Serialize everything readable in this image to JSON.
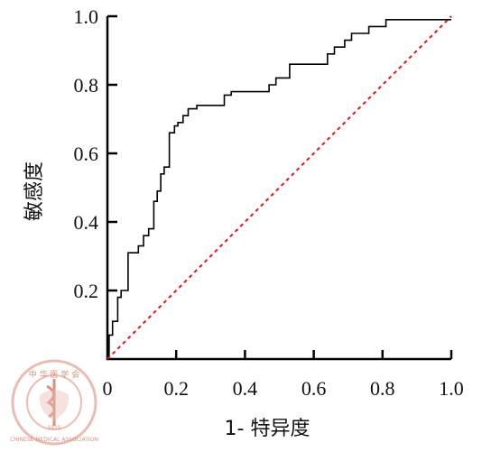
{
  "chart_data": {
    "type": "line",
    "title": "",
    "xlabel": "1- 特异度",
    "ylabel": "敏感度",
    "xlim": [
      0,
      1
    ],
    "ylim": [
      0,
      1
    ],
    "grid": false,
    "x_ticks": [
      "0",
      "0.2",
      "0.4",
      "0.6",
      "0.8",
      "1.0"
    ],
    "y_ticks": [
      "0.2",
      "0.4",
      "0.6",
      "0.8",
      "1.0"
    ],
    "series": [
      {
        "style": "solid-step",
        "color": "#000000",
        "x": [
          0,
          0.005,
          0.005,
          0.015,
          0.015,
          0.03,
          0.03,
          0.04,
          0.04,
          0.06,
          0.06,
          0.09,
          0.09,
          0.105,
          0.105,
          0.12,
          0.12,
          0.135,
          0.135,
          0.145,
          0.145,
          0.155,
          0.155,
          0.165,
          0.165,
          0.18,
          0.18,
          0.195,
          0.195,
          0.205,
          0.205,
          0.22,
          0.22,
          0.235,
          0.235,
          0.26,
          0.26,
          0.34,
          0.34,
          0.36,
          0.36,
          0.47,
          0.47,
          0.49,
          0.49,
          0.53,
          0.53,
          0.64,
          0.64,
          0.66,
          0.66,
          0.69,
          0.69,
          0.71,
          0.71,
          0.76,
          0.76,
          0.81,
          0.81,
          1.0
        ],
        "y": [
          0,
          0,
          0.07,
          0.07,
          0.11,
          0.11,
          0.18,
          0.18,
          0.2,
          0.2,
          0.31,
          0.31,
          0.33,
          0.33,
          0.36,
          0.36,
          0.38,
          0.38,
          0.46,
          0.46,
          0.49,
          0.49,
          0.54,
          0.54,
          0.56,
          0.56,
          0.66,
          0.66,
          0.68,
          0.68,
          0.69,
          0.69,
          0.71,
          0.71,
          0.73,
          0.73,
          0.74,
          0.74,
          0.77,
          0.77,
          0.78,
          0.78,
          0.8,
          0.8,
          0.82,
          0.82,
          0.86,
          0.86,
          0.89,
          0.89,
          0.91,
          0.91,
          0.93,
          0.93,
          0.95,
          0.95,
          0.97,
          0.97,
          0.99,
          0.99
        ]
      },
      {
        "style": "dashed",
        "color": "#e0161c",
        "x": [
          0,
          1
        ],
        "y": [
          0,
          1
        ]
      }
    ]
  },
  "watermark": {
    "top_text": "中 华 医 学 会",
    "ring_text": "CHINESE MEDICAL ASSOCIATION",
    "year": "1915"
  }
}
